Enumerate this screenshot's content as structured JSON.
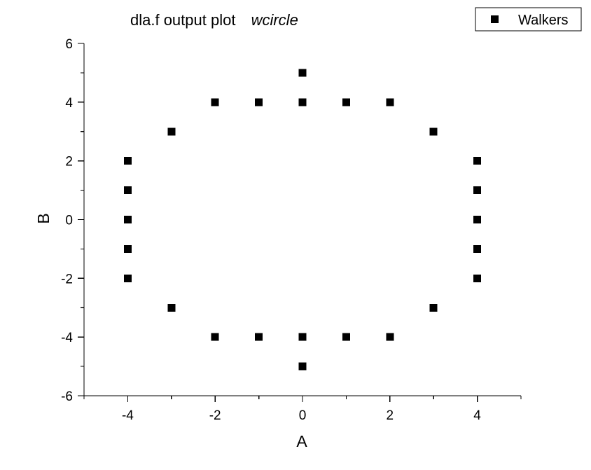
{
  "chart_data": {
    "type": "scatter",
    "title_parts": [
      "dla.f  output plot",
      "wcircle"
    ],
    "xlabel": "A",
    "ylabel": "B",
    "xlim": [
      -5,
      5
    ],
    "ylim": [
      -6,
      6
    ],
    "x_ticks": [
      -4,
      -2,
      0,
      2,
      4
    ],
    "x_tick_labels": [
      "-4",
      "-2",
      "0",
      "2",
      "4"
    ],
    "y_ticks": [
      -6,
      -4,
      -2,
      0,
      2,
      4,
      6
    ],
    "y_tick_labels": [
      "-6",
      "-4",
      "-2",
      "0",
      "2",
      "4",
      "6"
    ],
    "grid": false,
    "legend_position": "top-right",
    "marker": "square",
    "colors": {
      "marker": "#000000",
      "axis": "#000000",
      "background": "#ffffff"
    },
    "series": [
      {
        "name": "Walkers",
        "points": [
          [
            0,
            5
          ],
          [
            -2,
            4
          ],
          [
            -1,
            4
          ],
          [
            0,
            4
          ],
          [
            1,
            4
          ],
          [
            2,
            4
          ],
          [
            -3,
            3
          ],
          [
            3,
            3
          ],
          [
            -4,
            2
          ],
          [
            -4,
            1
          ],
          [
            -4,
            0
          ],
          [
            -4,
            -1
          ],
          [
            -4,
            -2
          ],
          [
            4,
            2
          ],
          [
            4,
            1
          ],
          [
            4,
            0
          ],
          [
            4,
            -1
          ],
          [
            4,
            -2
          ],
          [
            -3,
            -3
          ],
          [
            3,
            -3
          ],
          [
            -2,
            -4
          ],
          [
            -1,
            -4
          ],
          [
            0,
            -4
          ],
          [
            1,
            -4
          ],
          [
            2,
            -4
          ],
          [
            0,
            -5
          ]
        ]
      }
    ]
  }
}
